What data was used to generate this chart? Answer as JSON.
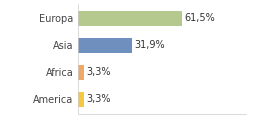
{
  "categories": [
    "Europa",
    "Asia",
    "Africa",
    "America"
  ],
  "values": [
    61.5,
    31.9,
    3.3,
    3.3
  ],
  "labels": [
    "61,5%",
    "31,9%",
    "3,3%",
    "3,3%"
  ],
  "bar_colors": [
    "#b5c98e",
    "#6f8fbf",
    "#f0a868",
    "#f5c842"
  ],
  "background_color": "#ffffff",
  "xlim": [
    0,
    100
  ],
  "bar_height": 0.55,
  "label_fontsize": 7,
  "tick_fontsize": 7,
  "figsize": [
    2.8,
    1.2
  ],
  "dpi": 100
}
